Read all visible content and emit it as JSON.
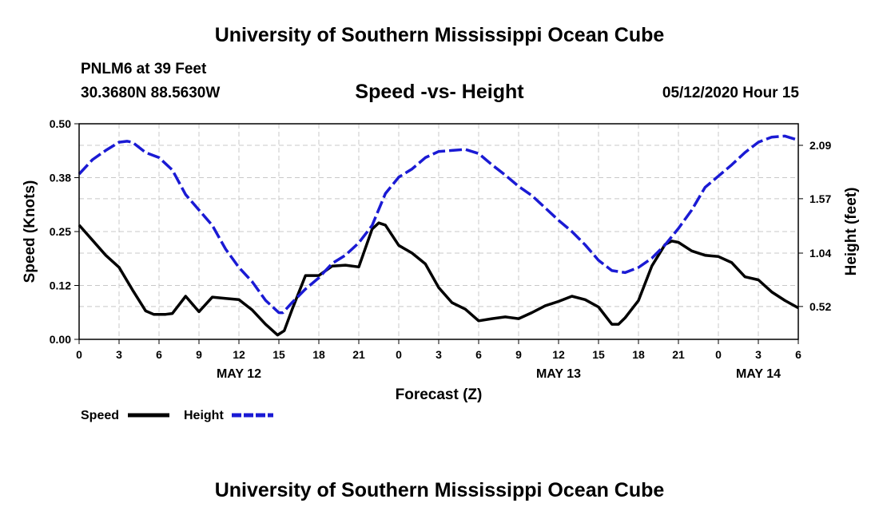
{
  "header": {
    "title": "University of Southern Mississippi Ocean Cube",
    "station": "PNLM6 at 39 Feet",
    "coordinates": "30.3680N 88.5630W",
    "datetime": "05/12/2020 Hour 15"
  },
  "footer": {
    "title": "University of Southern Mississippi Ocean Cube"
  },
  "chart_data": {
    "type": "line",
    "title": "Speed -vs- Height",
    "xlabel": "Forecast (Z)",
    "ylabel_left": "Speed (Knots)",
    "ylabel_right": "Height (feet)",
    "x_unit": "hours since May 12 00Z",
    "xlim": [
      0,
      54
    ],
    "ylim_left": [
      0,
      0.5
    ],
    "ylim_right": [
      0.2,
      2.3
    ],
    "grid": true,
    "legend_position": "bottom-left",
    "x_ticks": [
      {
        "x": 0,
        "label": "0"
      },
      {
        "x": 3,
        "label": "3"
      },
      {
        "x": 6,
        "label": "6"
      },
      {
        "x": 9,
        "label": "9"
      },
      {
        "x": 12,
        "label": "12"
      },
      {
        "x": 15,
        "label": "15"
      },
      {
        "x": 18,
        "label": "18"
      },
      {
        "x": 21,
        "label": "21"
      },
      {
        "x": 24,
        "label": "0"
      },
      {
        "x": 27,
        "label": "3"
      },
      {
        "x": 30,
        "label": "6"
      },
      {
        "x": 33,
        "label": "9"
      },
      {
        "x": 36,
        "label": "12"
      },
      {
        "x": 39,
        "label": "15"
      },
      {
        "x": 42,
        "label": "18"
      },
      {
        "x": 45,
        "label": "21"
      },
      {
        "x": 48,
        "label": "0"
      },
      {
        "x": 51,
        "label": "3"
      },
      {
        "x": 54,
        "label": "6"
      }
    ],
    "date_labels": [
      {
        "x": 12,
        "label": "MAY 12"
      },
      {
        "x": 36,
        "label": "MAY 13"
      },
      {
        "x": 51,
        "label": "MAY 14"
      }
    ],
    "y_ticks_left": [
      {
        "y": 0.0,
        "label": "0.00"
      },
      {
        "y": 0.125,
        "label": "0.12"
      },
      {
        "y": 0.25,
        "label": "0.25"
      },
      {
        "y": 0.375,
        "label": "0.38"
      },
      {
        "y": 0.5,
        "label": "0.50"
      }
    ],
    "y_ticks_right": [
      {
        "y": 0.52,
        "label": "0.52"
      },
      {
        "y": 1.04,
        "label": "1.04"
      },
      {
        "y": 1.57,
        "label": "1.57"
      },
      {
        "y": 2.09,
        "label": "2.09"
      }
    ],
    "series": [
      {
        "name": "Speed",
        "axis": "left",
        "color": "#000000",
        "dash": "solid",
        "points": [
          [
            0,
            0.265
          ],
          [
            1,
            0.23
          ],
          [
            2,
            0.195
          ],
          [
            3,
            0.167
          ],
          [
            4,
            0.115
          ],
          [
            5,
            0.066
          ],
          [
            5.6,
            0.058
          ],
          [
            6.5,
            0.058
          ],
          [
            7,
            0.06
          ],
          [
            8,
            0.1
          ],
          [
            9,
            0.064
          ],
          [
            10,
            0.098
          ],
          [
            11,
            0.095
          ],
          [
            12,
            0.092
          ],
          [
            13,
            0.068
          ],
          [
            14,
            0.035
          ],
          [
            14.9,
            0.01
          ],
          [
            15.4,
            0.02
          ],
          [
            16,
            0.07
          ],
          [
            17,
            0.148
          ],
          [
            18,
            0.148
          ],
          [
            19,
            0.17
          ],
          [
            20,
            0.172
          ],
          [
            21,
            0.168
          ],
          [
            22,
            0.256
          ],
          [
            22.5,
            0.27
          ],
          [
            23,
            0.265
          ],
          [
            24,
            0.218
          ],
          [
            25,
            0.2
          ],
          [
            26,
            0.175
          ],
          [
            27,
            0.12
          ],
          [
            28,
            0.085
          ],
          [
            29,
            0.07
          ],
          [
            30,
            0.043
          ],
          [
            31,
            0.048
          ],
          [
            32,
            0.052
          ],
          [
            33,
            0.048
          ],
          [
            34,
            0.062
          ],
          [
            35,
            0.078
          ],
          [
            36,
            0.088
          ],
          [
            37,
            0.1
          ],
          [
            38,
            0.092
          ],
          [
            39,
            0.075
          ],
          [
            40,
            0.035
          ],
          [
            40.5,
            0.035
          ],
          [
            41,
            0.05
          ],
          [
            42,
            0.09
          ],
          [
            43,
            0.17
          ],
          [
            44,
            0.22
          ],
          [
            44.5,
            0.228
          ],
          [
            45,
            0.225
          ],
          [
            46,
            0.205
          ],
          [
            47,
            0.195
          ],
          [
            48,
            0.192
          ],
          [
            49,
            0.178
          ],
          [
            50,
            0.145
          ],
          [
            51,
            0.138
          ],
          [
            52,
            0.11
          ],
          [
            53,
            0.09
          ],
          [
            54,
            0.073
          ]
        ]
      },
      {
        "name": "Height",
        "axis": "right",
        "color": "#1a1ad4",
        "dash": "dashed",
        "points": [
          [
            0,
            1.81
          ],
          [
            1,
            1.95
          ],
          [
            2,
            2.04
          ],
          [
            3,
            2.12
          ],
          [
            3.6,
            2.13
          ],
          [
            4,
            2.12
          ],
          [
            5,
            2.02
          ],
          [
            6,
            1.97
          ],
          [
            7,
            1.85
          ],
          [
            8,
            1.61
          ],
          [
            9,
            1.46
          ],
          [
            10,
            1.31
          ],
          [
            11,
            1.08
          ],
          [
            12,
            0.9
          ],
          [
            13,
            0.76
          ],
          [
            14,
            0.58
          ],
          [
            15,
            0.46
          ],
          [
            15.3,
            0.46
          ],
          [
            16,
            0.56
          ],
          [
            17,
            0.69
          ],
          [
            18,
            0.8
          ],
          [
            19,
            0.94
          ],
          [
            20,
            1.02
          ],
          [
            21,
            1.14
          ],
          [
            22,
            1.31
          ],
          [
            23,
            1.62
          ],
          [
            24,
            1.78
          ],
          [
            25,
            1.86
          ],
          [
            26,
            1.97
          ],
          [
            27,
            2.03
          ],
          [
            28,
            2.04
          ],
          [
            29,
            2.05
          ],
          [
            30,
            2.01
          ],
          [
            31,
            1.9
          ],
          [
            32,
            1.8
          ],
          [
            33,
            1.69
          ],
          [
            34,
            1.6
          ],
          [
            35,
            1.48
          ],
          [
            36,
            1.36
          ],
          [
            37,
            1.25
          ],
          [
            38,
            1.12
          ],
          [
            39,
            0.97
          ],
          [
            40,
            0.87
          ],
          [
            41,
            0.85
          ],
          [
            42,
            0.9
          ],
          [
            43,
            0.99
          ],
          [
            44,
            1.12
          ],
          [
            45,
            1.28
          ],
          [
            46,
            1.46
          ],
          [
            47,
            1.68
          ],
          [
            48,
            1.79
          ],
          [
            49,
            1.9
          ],
          [
            50,
            2.02
          ],
          [
            51,
            2.12
          ],
          [
            52,
            2.17
          ],
          [
            53,
            2.18
          ],
          [
            54,
            2.14
          ]
        ]
      }
    ]
  }
}
